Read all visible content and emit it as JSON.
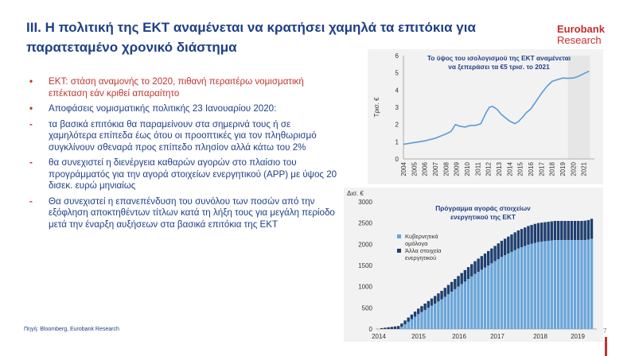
{
  "title": {
    "line1": "III. Η πολιτική της ΕΚΤ αναμένεται να κρατήσει χαμηλά τα επιτόκια για",
    "line2": "παρατεταμένο χρονικό διάστημα"
  },
  "logo": {
    "brand": "Eurobank",
    "sub": "Research"
  },
  "bullets": [
    {
      "marker": "•",
      "text": "ΕΚΤ: στάση αναμονής το 2020, πιθανή περαιτέρω νομισματική επέκταση εάν κριθεί απαραίτητο",
      "color": "red"
    },
    {
      "marker": "•",
      "text": "Αποφάσεις νομισματικής πολιτικής 23 Ιανουαρίου 2020:",
      "color": "blue"
    },
    {
      "marker": "-",
      "text": "τα βασικά επιτόκια θα παραμείνουν στα σημερινά τους ή σε χαμηλότερα επίπεδα έως ότου οι προοπτικές για τον πληθωρισμό συγκλίνουν σθεναρά προς επίπεδο πλησίον αλλά κάτω του 2%",
      "color": "blue"
    },
    {
      "marker": "-",
      "text": "θα συνεχιστεί η διενέργεια καθαρών αγορών στο πλαίσιο του προγράμματός για την αγορά στοιχείων ενεργητικού (APP) με ύψος 20 δισεκ. ευρώ μηνιαίως",
      "color": "blue"
    },
    {
      "marker": "-",
      "text": "Θα συνεχιστεί η επανεπένδυση του συνόλου των ποσών από την εξόφληση αποκτηθέντων τίτλων κατά τη λήξη τους για μεγάλη περίοδο μετά την έναρξη αυξήσεων στα βασικά επιτόκια της ΕΚΤ",
      "color": "blue"
    }
  ],
  "source": "Πηγή: Bloomberg, Eurobank Research",
  "page_number": "7",
  "colors": {
    "title": "#1f3f87",
    "accent_red": "#c2342f",
    "line": "#5b9bd5",
    "bar_light": "#6aa6d9",
    "bar_dark": "#1f3f6e",
    "shade": "#e6e6e6"
  },
  "chart_data": [
    {
      "type": "line",
      "title": "Το ύψος του ισολογισμού της ΕΚΤ αναμένεται να ξεπεράσει τα €5 τρισ. το 2021",
      "title_lines": [
        "Το ύψος του ισολογισμού της ΕΚΤ αναμένεται",
        "να ξεπεράσει τα €5 τρισ. το 2021"
      ],
      "ylabel": "Τρισ. €",
      "ylim": [
        0,
        6
      ],
      "yticks": [
        "0",
        "1",
        "2",
        "3",
        "4",
        "5",
        "6"
      ],
      "xlim": [
        2004,
        2022
      ],
      "xticks": [
        "2004",
        "2005",
        "2006",
        "2007",
        "2008",
        "2009",
        "2010",
        "2011",
        "2012",
        "2013",
        "2014",
        "2015",
        "2016",
        "2017",
        "2018",
        "2019",
        "2020",
        "2021"
      ],
      "shaded_range": [
        2019.5,
        2021.6
      ],
      "x": [
        2004.0,
        2005.0,
        2006.0,
        2007.0,
        2007.6,
        2008.0,
        2008.5,
        2008.9,
        2009.3,
        2009.8,
        2010.3,
        2010.8,
        2011.3,
        2011.8,
        2012.1,
        2012.4,
        2012.8,
        2013.2,
        2013.6,
        2014.0,
        2014.5,
        2014.8,
        2015.2,
        2015.6,
        2016.0,
        2016.5,
        2017.0,
        2017.5,
        2018.0,
        2018.5,
        2019.0,
        2019.5,
        2020.0,
        2020.5,
        2021.0,
        2021.5
      ],
      "y": [
        0.85,
        0.95,
        1.05,
        1.2,
        1.35,
        1.45,
        1.6,
        2.0,
        1.9,
        1.85,
        1.95,
        1.95,
        2.05,
        2.7,
        3.0,
        3.05,
        2.9,
        2.6,
        2.4,
        2.2,
        2.05,
        2.15,
        2.4,
        2.7,
        2.9,
        3.35,
        3.8,
        4.2,
        4.5,
        4.6,
        4.7,
        4.68,
        4.7,
        4.8,
        4.95,
        5.1
      ]
    },
    {
      "type": "bar",
      "stacked": true,
      "title": "Πρόγραμμα αγοράς στοιχείων ενεργητικού της ΕΚΤ",
      "title_lines": [
        "Πρόγραμμα αγοράς στοιχείων",
        "ενεργητικού της ΕΚΤ"
      ],
      "ylabel": "Δισ. €",
      "ylim": [
        0,
        3000
      ],
      "yticks": [
        "0",
        "500",
        "1000",
        "1500",
        "2000",
        "2500",
        "3000"
      ],
      "xticks": [
        "2014",
        "2015",
        "2016",
        "2017",
        "2018",
        "2019"
      ],
      "legend": [
        "Κυβερνητικά ομόλογα",
        "Άλλα στοιχεία ενεργητικού"
      ],
      "months": 64,
      "start": [
        2014.75
      ],
      "series": [
        {
          "name": "Κυβερνητικά ομόλογα",
          "values": [
            0,
            0,
            0,
            0,
            0,
            0,
            50,
            110,
            170,
            230,
            290,
            350,
            400,
            450,
            500,
            550,
            600,
            650,
            700,
            760,
            820,
            880,
            940,
            1000,
            1060,
            1120,
            1180,
            1240,
            1300,
            1350,
            1400,
            1450,
            1500,
            1550,
            1600,
            1650,
            1700,
            1740,
            1780,
            1820,
            1860,
            1900,
            1930,
            1960,
            1990,
            2010,
            2030,
            2050,
            2060,
            2070,
            2080,
            2090,
            2100,
            2100,
            2100,
            2100,
            2100,
            2100,
            2100,
            2100,
            2100,
            2100,
            2110,
            2130
          ]
        },
        {
          "name": "Άλλα στοιχεία ενεργητικού",
          "values": [
            20,
            30,
            40,
            50,
            60,
            70,
            80,
            90,
            100,
            110,
            120,
            130,
            140,
            150,
            160,
            170,
            180,
            190,
            200,
            210,
            220,
            230,
            240,
            250,
            260,
            270,
            280,
            290,
            300,
            310,
            320,
            330,
            340,
            350,
            360,
            370,
            380,
            390,
            400,
            410,
            420,
            425,
            430,
            435,
            440,
            445,
            450,
            450,
            450,
            450,
            450,
            450,
            450,
            450,
            450,
            450,
            450,
            450,
            450,
            450,
            450,
            455,
            460,
            470
          ]
        }
      ]
    }
  ]
}
